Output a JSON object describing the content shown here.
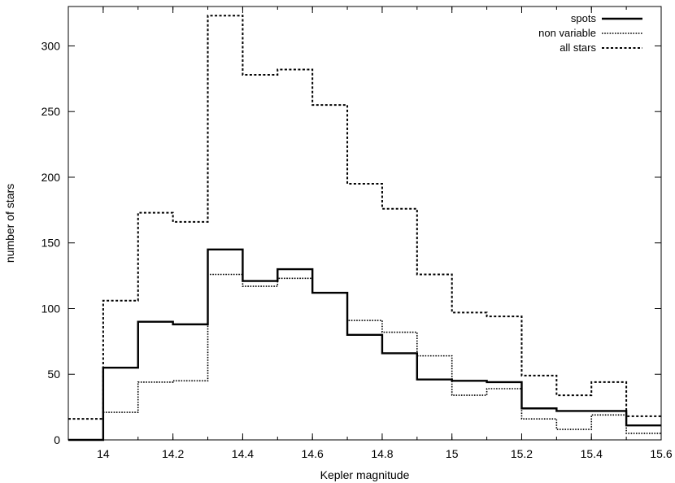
{
  "chart_data": {
    "type": "line",
    "step": true,
    "xlabel": "Kepler magnitude",
    "ylabel": "number of stars",
    "xlim": [
      13.9,
      15.6
    ],
    "ylim": [
      0,
      330
    ],
    "xticks": [
      "14",
      "14.2",
      "14.4",
      "14.6",
      "14.8",
      "15",
      "15.2",
      "15.4",
      "15.6"
    ],
    "yticks": [
      "0",
      "50",
      "100",
      "150",
      "200",
      "250",
      "300"
    ],
    "grid": false,
    "legend_position": "top-right",
    "bin_edges": [
      13.9,
      14.0,
      14.1,
      14.2,
      14.3,
      14.4,
      14.5,
      14.6,
      14.7,
      14.8,
      14.9,
      15.0,
      15.1,
      15.2,
      15.3,
      15.4,
      15.5,
      15.6
    ],
    "series": [
      {
        "name": "spots",
        "style": "solid",
        "values": [
          0,
          55,
          90,
          88,
          145,
          121,
          130,
          112,
          80,
          66,
          46,
          45,
          44,
          24,
          22,
          22,
          11
        ]
      },
      {
        "name": "non variable",
        "style": "dotted",
        "values": [
          0,
          21,
          44,
          45,
          126,
          117,
          123,
          112,
          91,
          82,
          64,
          34,
          39,
          16,
          8,
          19,
          5
        ]
      },
      {
        "name": "all stars",
        "style": "dashed",
        "values": [
          16,
          106,
          173,
          166,
          323,
          278,
          282,
          255,
          195,
          176,
          126,
          97,
          94,
          49,
          34,
          44,
          18
        ]
      }
    ]
  }
}
